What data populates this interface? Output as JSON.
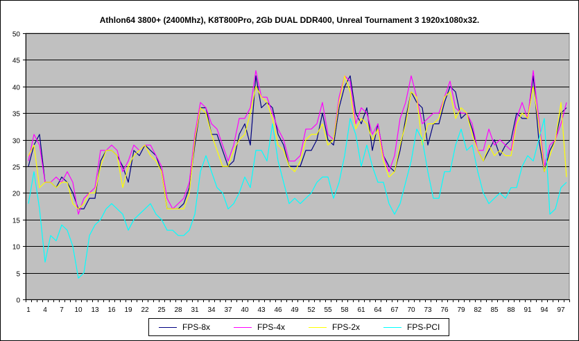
{
  "chart_data": {
    "type": "line",
    "title": "Athlon64 3800+ (2400Mhz), K8T800Pro, 2Gb DUAL DDR400, Unreal Tournament 3 1920x1080x32.",
    "xlabel": "",
    "ylabel": "",
    "ylim": [
      0,
      50
    ],
    "yticks": [
      0,
      5,
      10,
      15,
      20,
      25,
      30,
      35,
      40,
      45,
      50
    ],
    "x": [
      1,
      2,
      3,
      4,
      5,
      6,
      7,
      8,
      9,
      10,
      11,
      12,
      13,
      14,
      15,
      16,
      17,
      18,
      19,
      20,
      21,
      22,
      23,
      24,
      25,
      26,
      27,
      28,
      29,
      30,
      31,
      32,
      33,
      34,
      35,
      36,
      37,
      38,
      39,
      40,
      41,
      42,
      43,
      44,
      45,
      46,
      47,
      48,
      49,
      50,
      51,
      52,
      53,
      54,
      55,
      56,
      57,
      58,
      59,
      60,
      61,
      62,
      63,
      64,
      65,
      66,
      67,
      68,
      69,
      70,
      71,
      72,
      73,
      74,
      75,
      76,
      77,
      78,
      79,
      80,
      81,
      82,
      83,
      84,
      85,
      86,
      87,
      88,
      89,
      90,
      91,
      92,
      93,
      94,
      95,
      96,
      97,
      98
    ],
    "xticks": [
      1,
      4,
      7,
      10,
      13,
      16,
      19,
      22,
      25,
      28,
      31,
      34,
      37,
      40,
      43,
      46,
      49,
      52,
      55,
      58,
      61,
      64,
      67,
      70,
      73,
      76,
      79,
      82,
      85,
      88,
      91,
      94,
      97
    ],
    "grid": true,
    "plot_background": "#c0c0c0",
    "legend_position": "bottom",
    "series": [
      {
        "name": "FPS-8x",
        "color": "#000080",
        "values": [
          25,
          29,
          31,
          22,
          22,
          21,
          23,
          22,
          20,
          17,
          17,
          19,
          19,
          26,
          28,
          28,
          27,
          25,
          22,
          28,
          27,
          29,
          28,
          27,
          24,
          17,
          17,
          17,
          18,
          21,
          29,
          36,
          36,
          31,
          31,
          28,
          25,
          26,
          31,
          33,
          29,
          42,
          36,
          37,
          36,
          31,
          29,
          25,
          25,
          25,
          28,
          28,
          30,
          35,
          30,
          29,
          36,
          40,
          42,
          35,
          33,
          36,
          28,
          33,
          27,
          25,
          24,
          28,
          34,
          39,
          37,
          36,
          29,
          33,
          33,
          37,
          40,
          39,
          34,
          35,
          32,
          28,
          26,
          28,
          30,
          27,
          29,
          30,
          35,
          34,
          34,
          42,
          30,
          24,
          28,
          30,
          35,
          36
        ]
      },
      {
        "name": "FPS-4x",
        "color": "#ff00ff",
        "values": [
          26,
          31,
          29,
          22,
          22,
          23,
          22,
          24,
          22,
          16,
          19,
          20,
          21,
          28,
          28,
          29,
          28,
          24,
          26,
          29,
          28,
          29,
          29,
          27,
          25,
          19,
          17,
          18,
          19,
          22,
          31,
          37,
          36,
          33,
          32,
          29,
          26,
          29,
          34,
          34,
          36,
          43,
          38,
          38,
          35,
          32,
          30,
          26,
          26,
          27,
          32,
          32,
          33,
          37,
          31,
          30,
          38,
          42,
          41,
          33,
          36,
          35,
          31,
          33,
          27,
          24,
          27,
          34,
          37,
          42,
          38,
          33,
          34,
          35,
          35,
          38,
          41,
          36,
          35,
          35,
          33,
          28,
          28,
          32,
          29,
          30,
          29,
          28,
          34,
          37,
          34,
          43,
          34,
          25,
          29,
          30,
          33,
          37
        ]
      },
      {
        "name": "FPS-2x",
        "color": "#ffff00",
        "values": [
          27,
          29,
          21,
          22,
          22,
          21,
          22,
          22,
          18,
          17,
          18,
          20,
          20,
          25,
          28,
          28,
          27,
          21,
          25,
          27,
          28,
          29,
          27,
          26,
          24,
          17,
          17,
          17,
          17,
          20,
          30,
          36,
          35,
          31,
          28,
          25,
          25,
          28,
          30,
          31,
          35,
          40,
          38,
          37,
          34,
          29,
          28,
          25,
          24,
          26,
          30,
          31,
          31,
          33,
          29,
          30,
          37,
          42,
          39,
          32,
          34,
          33,
          30,
          32,
          26,
          23,
          24,
          29,
          33,
          39,
          38,
          29,
          33,
          33,
          34,
          38,
          39,
          34,
          36,
          35,
          31,
          28,
          26,
          29,
          27,
          28,
          27,
          27,
          33,
          35,
          34,
          40,
          33,
          24,
          27,
          30,
          37,
          23
        ]
      },
      {
        "name": "FPS-PCI",
        "color": "#00ffff",
        "values": [
          18,
          24,
          17,
          7,
          12,
          11,
          14,
          13,
          10,
          4,
          5,
          12,
          14,
          15,
          17,
          18,
          17,
          16,
          13,
          15,
          16,
          17,
          18,
          16,
          15,
          13,
          13,
          12,
          12,
          13,
          16,
          24,
          27,
          24,
          21,
          20,
          17,
          18,
          20,
          23,
          21,
          28,
          28,
          26,
          33,
          26,
          22,
          18,
          19,
          18,
          19,
          20,
          22,
          23,
          23,
          19,
          22,
          27,
          34,
          31,
          25,
          29,
          25,
          22,
          22,
          18,
          16,
          18,
          22,
          26,
          32,
          30,
          24,
          19,
          19,
          24,
          24,
          29,
          32,
          28,
          29,
          24,
          20,
          18,
          19,
          20,
          19,
          21,
          21,
          25,
          27,
          26,
          30,
          34,
          16,
          17,
          21,
          22
        ]
      }
    ]
  }
}
